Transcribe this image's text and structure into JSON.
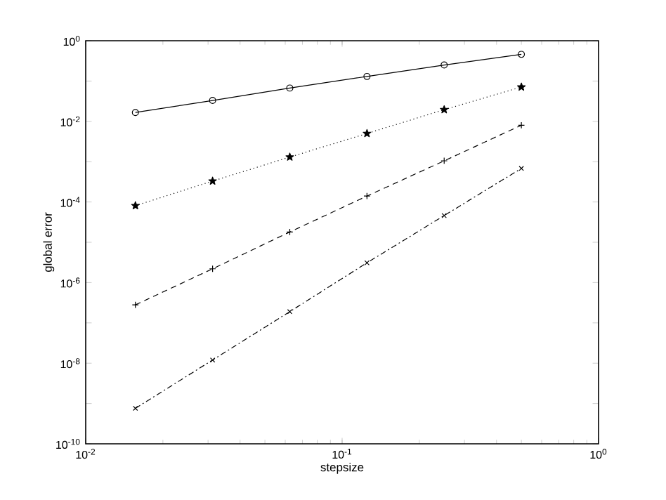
{
  "chart_data": {
    "type": "line",
    "xlabel": "stepsize",
    "ylabel": "global error",
    "log": "xy",
    "grid": false,
    "xlim": [
      0.01,
      1
    ],
    "ylim": [
      1e-10,
      1
    ],
    "xticks": [
      {
        "value": 0.01,
        "label": "10$^{-2}$"
      },
      {
        "value": 0.1,
        "label": "10$^{-1}$"
      },
      {
        "value": 1,
        "label": "10$^{0}$"
      }
    ],
    "yticks": [
      {
        "value": 1e-10,
        "label": "10$^{-10}$"
      },
      {
        "value": 1e-09,
        "label": null
      },
      {
        "value": 1e-08,
        "label": "10$^{-8}$"
      },
      {
        "value": 1e-07,
        "label": null
      },
      {
        "value": 1e-06,
        "label": "10$^{-6}$"
      },
      {
        "value": 1e-05,
        "label": null
      },
      {
        "value": 0.0001,
        "label": "10$^{-4}$"
      },
      {
        "value": 0.001,
        "label": null
      },
      {
        "value": 0.01,
        "label": "10$^{-2}$"
      },
      {
        "value": 0.1,
        "label": null
      },
      {
        "value": 1,
        "label": "10$^{0}$"
      }
    ],
    "x": [
      0.015625,
      0.03125,
      0.0625,
      0.125,
      0.25,
      0.5
    ],
    "series": [
      {
        "color": "#000000",
        "marker": "circle",
        "line_style": "solid",
        "values": [
          0.0166,
          0.033,
          0.067,
          0.13,
          0.25,
          0.46
        ]
      },
      {
        "color": "#000000",
        "marker": "star",
        "line_style": "dotted",
        "values": [
          8.1e-05,
          0.00033,
          0.0013,
          0.005,
          0.0195,
          0.071
        ]
      },
      {
        "color": "#000000",
        "marker": "plus",
        "line_style": "dashed",
        "values": [
          2.8e-07,
          2.2e-06,
          1.8e-05,
          0.00014,
          0.00105,
          0.008
        ]
      },
      {
        "color": "#000000",
        "marker": "cross",
        "line_style": "dashdot",
        "values": [
          7.6e-10,
          1.2e-08,
          1.9e-07,
          3.1e-06,
          4.6e-05,
          0.00068
        ]
      }
    ]
  }
}
